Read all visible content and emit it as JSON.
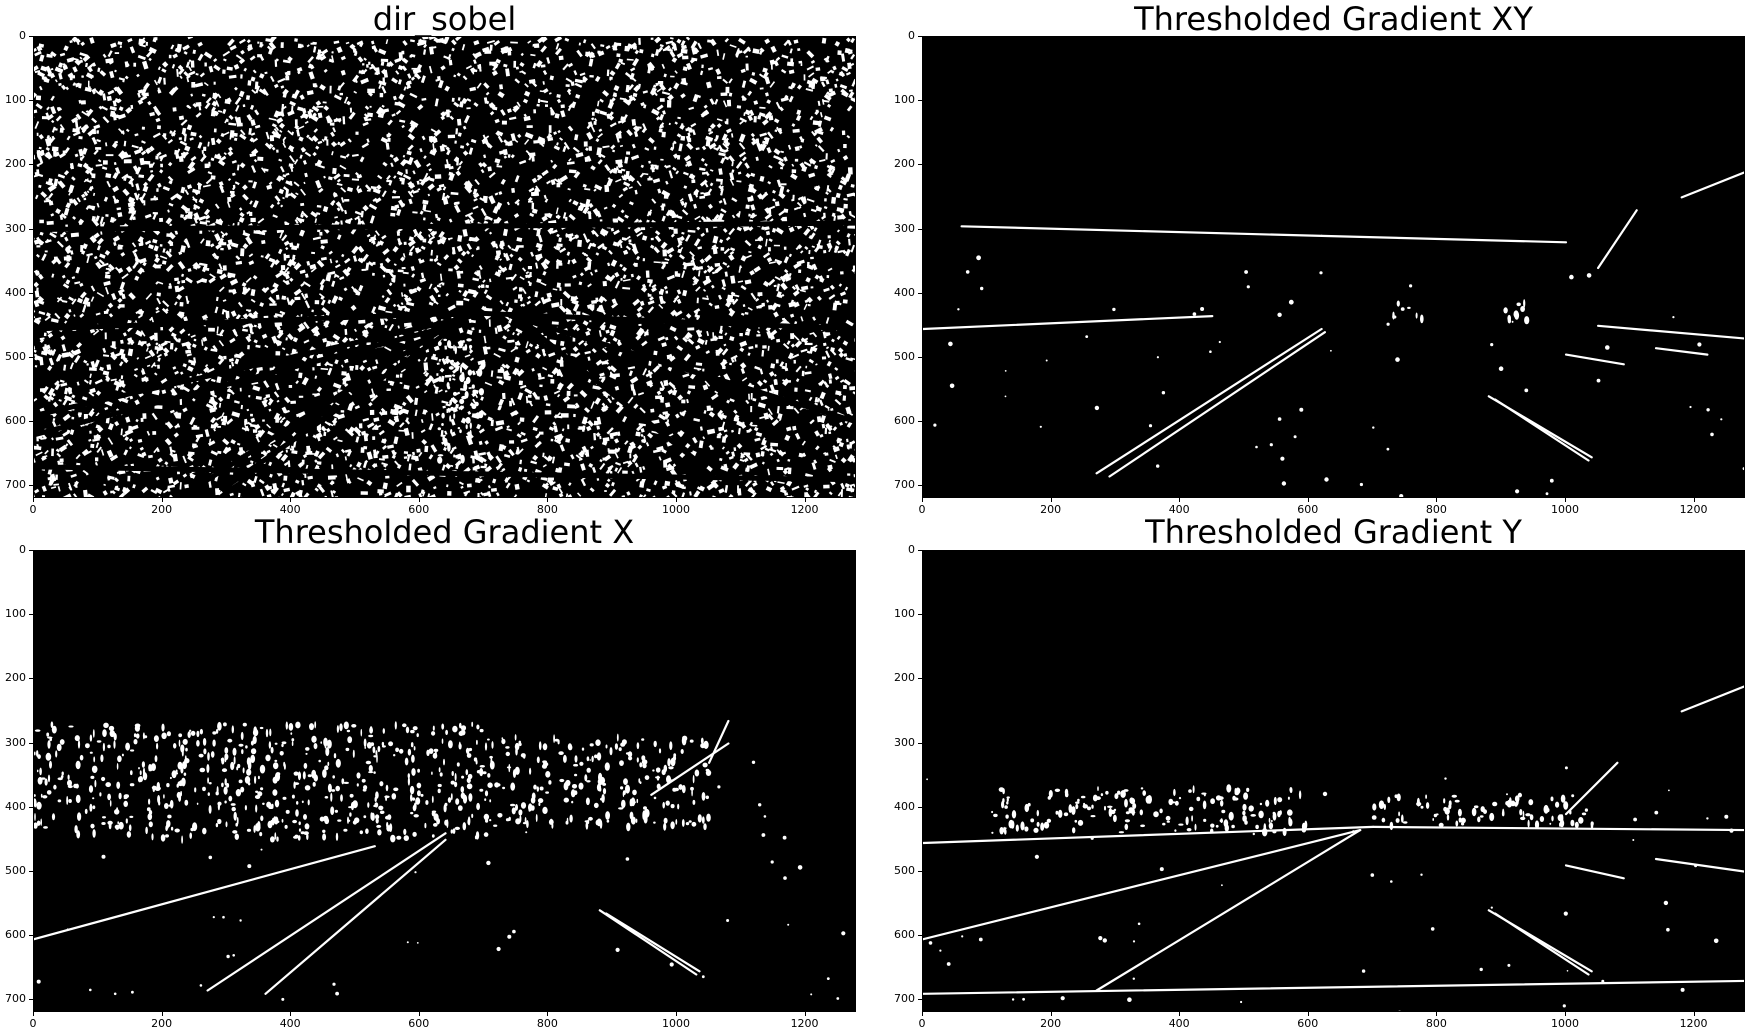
{
  "figure": {
    "background": "#ffffff",
    "foreground": "#ffffff",
    "image_background": "#000000"
  },
  "chart_data": [
    {
      "type": "image",
      "title": "dir_sobel",
      "xlabel": "",
      "ylabel": "",
      "xlim": [
        0,
        1280
      ],
      "ylim": [
        720,
        0
      ],
      "xticks": [
        0,
        200,
        400,
        600,
        800,
        1000,
        1200
      ],
      "yticks": [
        0,
        100,
        200,
        300,
        400,
        500,
        600,
        700
      ],
      "xtick_labels": [
        "0",
        "200",
        "400",
        "600",
        "800",
        "1000",
        "1200"
      ],
      "ytick_labels": [
        "0",
        "100",
        "200",
        "300",
        "400",
        "500",
        "600",
        "700"
      ],
      "colormap": "gray",
      "dense_noise": true,
      "lines": [
        {
          "x": [
            0,
            680
          ],
          "y": [
            455,
            430
          ]
        },
        {
          "x": [
            0,
            660
          ],
          "y": [
            590,
            440
          ]
        },
        {
          "x": [
            0,
            650
          ],
          "y": [
            620,
            450
          ]
        },
        {
          "x": [
            270,
            660
          ],
          "y": [
            690,
            440
          ]
        },
        {
          "x": [
            300,
            665
          ],
          "y": [
            700,
            445
          ]
        },
        {
          "x": [
            680,
            1280
          ],
          "y": [
            430,
            455
          ]
        },
        {
          "x": [
            760,
            1280
          ],
          "y": [
            440,
            600
          ]
        },
        {
          "x": [
            760,
            1030
          ],
          "y": [
            445,
            660
          ]
        },
        {
          "x": [
            0,
            1280
          ],
          "y": [
            300,
            290
          ]
        },
        {
          "x": [
            0,
            1280
          ],
          "y": [
            670,
            690
          ]
        }
      ],
      "bright_regions": [
        {
          "x": [
            630,
            700
          ],
          "y": [
            460,
            660
          ]
        }
      ]
    },
    {
      "type": "image",
      "title": "Thresholded Gradient XY",
      "xlabel": "",
      "ylabel": "",
      "xlim": [
        0,
        1280
      ],
      "ylim": [
        720,
        0
      ],
      "xticks": [
        0,
        200,
        400,
        600,
        800,
        1000,
        1200
      ],
      "yticks": [
        0,
        100,
        200,
        300,
        400,
        500,
        600,
        700
      ],
      "xtick_labels": [
        "0",
        "200",
        "400",
        "600",
        "800",
        "1000",
        "1200"
      ],
      "ytick_labels": [
        "0",
        "100",
        "200",
        "300",
        "400",
        "500",
        "600",
        "700"
      ],
      "colormap": "gray",
      "dense_noise": false,
      "lines": [
        {
          "x": [
            270,
            620
          ],
          "y": [
            680,
            455
          ]
        },
        {
          "x": [
            290,
            625
          ],
          "y": [
            685,
            460
          ]
        },
        {
          "x": [
            880,
            1040
          ],
          "y": [
            560,
            655
          ]
        },
        {
          "x": [
            890,
            1035
          ],
          "y": [
            565,
            660
          ]
        },
        {
          "x": [
            0,
            450
          ],
          "y": [
            455,
            435
          ]
        },
        {
          "x": [
            60,
            620
          ],
          "y": [
            295,
            310
          ]
        },
        {
          "x": [
            620,
            1000
          ],
          "y": [
            310,
            320
          ]
        },
        {
          "x": [
            1050,
            1280
          ],
          "y": [
            450,
            470
          ]
        },
        {
          "x": [
            1000,
            1090
          ],
          "y": [
            495,
            510
          ]
        },
        {
          "x": [
            1140,
            1220
          ],
          "y": [
            485,
            495
          ]
        },
        {
          "x": [
            1050,
            1110
          ],
          "y": [
            360,
            270
          ]
        },
        {
          "x": [
            1180,
            1280
          ],
          "y": [
            250,
            210
          ]
        }
      ],
      "bright_regions": [
        {
          "x": [
            890,
            950
          ],
          "y": [
            415,
            450
          ]
        },
        {
          "x": [
            730,
            780
          ],
          "y": [
            410,
            440
          ]
        }
      ]
    },
    {
      "type": "image",
      "title": "Thresholded Gradient X",
      "xlabel": "",
      "ylabel": "",
      "xlim": [
        0,
        1280
      ],
      "ylim": [
        720,
        0
      ],
      "xticks": [
        0,
        200,
        400,
        600,
        800,
        1000,
        1200
      ],
      "yticks": [
        0,
        100,
        200,
        300,
        400,
        500,
        600,
        700
      ],
      "xtick_labels": [
        "0",
        "200",
        "400",
        "600",
        "800",
        "1000",
        "1200"
      ],
      "ytick_labels": [
        "0",
        "100",
        "200",
        "300",
        "400",
        "500",
        "600",
        "700"
      ],
      "colormap": "gray",
      "dense_noise": false,
      "lines": [
        {
          "x": [
            270,
            640
          ],
          "y": [
            685,
            440
          ]
        },
        {
          "x": [
            0,
            530
          ],
          "y": [
            605,
            460
          ]
        },
        {
          "x": [
            880,
            1030
          ],
          "y": [
            560,
            660
          ]
        },
        {
          "x": [
            890,
            1035
          ],
          "y": [
            565,
            655
          ]
        },
        {
          "x": [
            960,
            1080
          ],
          "y": [
            380,
            300
          ]
        },
        {
          "x": [
            1050,
            1080
          ],
          "y": [
            330,
            265
          ]
        },
        {
          "x": [
            360,
            640
          ],
          "y": [
            690,
            450
          ]
        }
      ],
      "bright_regions": [
        {
          "x": [
            0,
            700
          ],
          "y": [
            270,
            450
          ]
        },
        {
          "x": [
            700,
            1050
          ],
          "y": [
            290,
            430
          ]
        }
      ]
    },
    {
      "type": "image",
      "title": "Thresholded Gradient Y",
      "xlabel": "",
      "ylabel": "",
      "xlim": [
        0,
        1280
      ],
      "ylim": [
        720,
        0
      ],
      "xticks": [
        0,
        200,
        400,
        600,
        800,
        1000,
        1200
      ],
      "yticks": [
        0,
        100,
        200,
        300,
        400,
        500,
        600,
        700
      ],
      "xtick_labels": [
        "0",
        "200",
        "400",
        "600",
        "800",
        "1000",
        "1200"
      ],
      "ytick_labels": [
        "0",
        "100",
        "200",
        "300",
        "400",
        "500",
        "600",
        "700"
      ],
      "colormap": "gray",
      "dense_noise": false,
      "lines": [
        {
          "x": [
            0,
            700
          ],
          "y": [
            455,
            430
          ]
        },
        {
          "x": [
            700,
            1280
          ],
          "y": [
            430,
            435
          ]
        },
        {
          "x": [
            0,
            680
          ],
          "y": [
            605,
            435
          ]
        },
        {
          "x": [
            270,
            680
          ],
          "y": [
            685,
            435
          ]
        },
        {
          "x": [
            880,
            1040
          ],
          "y": [
            560,
            655
          ]
        },
        {
          "x": [
            890,
            1035
          ],
          "y": [
            565,
            660
          ]
        },
        {
          "x": [
            0,
            1280
          ],
          "y": [
            690,
            670
          ]
        },
        {
          "x": [
            1000,
            1080
          ],
          "y": [
            410,
            330
          ]
        },
        {
          "x": [
            1000,
            1090
          ],
          "y": [
            490,
            510
          ]
        },
        {
          "x": [
            1140,
            1280
          ],
          "y": [
            480,
            500
          ]
        },
        {
          "x": [
            1180,
            1280
          ],
          "y": [
            250,
            210
          ]
        }
      ],
      "bright_regions": [
        {
          "x": [
            100,
            600
          ],
          "y": [
            370,
            440
          ]
        },
        {
          "x": [
            700,
            1050
          ],
          "y": [
            380,
            430
          ]
        }
      ]
    }
  ]
}
